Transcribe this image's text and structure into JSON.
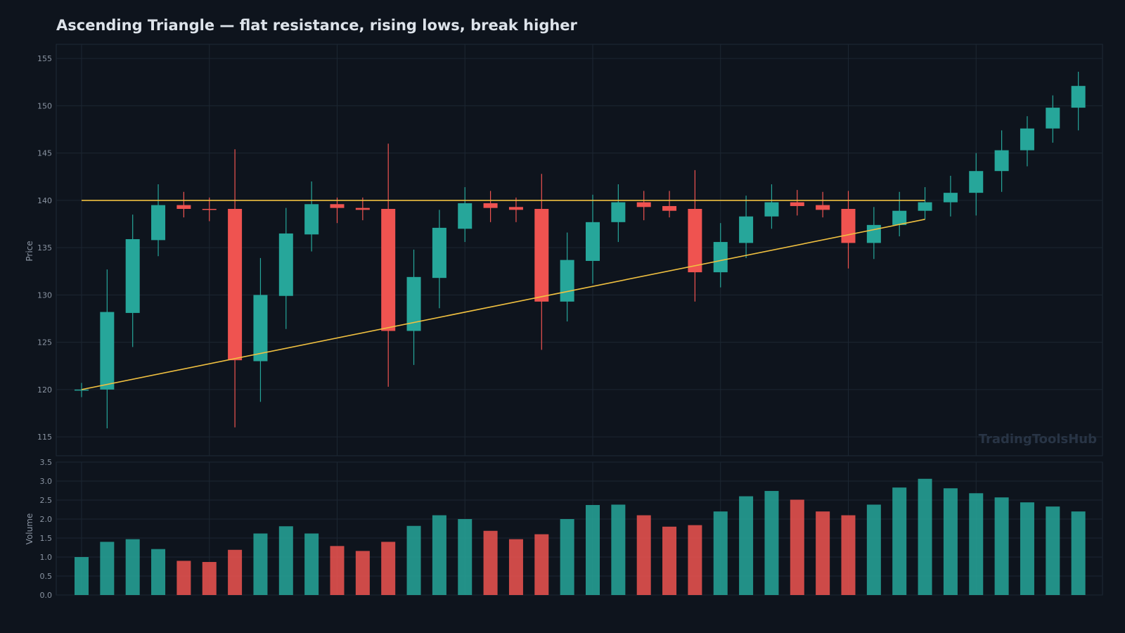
{
  "colors": {
    "background": "#0e141d",
    "up": "#26a69a",
    "down": "#ef5350",
    "trendline": "#f0c040",
    "grid": "#1c2632"
  },
  "chart_data": {
    "type": "candlestick",
    "title": "Ascending Triangle — flat resistance, rising lows, break higher",
    "watermark": "TradingToolsHub",
    "price_panel": {
      "ylabel": "Price",
      "ylim": [
        113.0,
        156.5
      ],
      "yticks": [
        "115",
        "120",
        "125",
        "130",
        "135",
        "140",
        "145",
        "150",
        "155"
      ],
      "grid": true
    },
    "volume_panel": {
      "ylabel": "Volume",
      "ylim": [
        0,
        3.5
      ],
      "yticks": [
        "0.0",
        "0.5",
        "1.0",
        "1.5",
        "2.0",
        "2.5",
        "3.0",
        "3.5"
      ],
      "grid": true
    },
    "candles": [
      {
        "o": 120.0,
        "h": 120.7,
        "l": 119.2,
        "c": 120.0,
        "v": 1.0
      },
      {
        "o": 120.0,
        "h": 132.7,
        "l": 115.9,
        "c": 128.2,
        "v": 1.4
      },
      {
        "o": 128.1,
        "h": 138.5,
        "l": 124.5,
        "c": 135.9,
        "v": 1.47
      },
      {
        "o": 135.8,
        "h": 141.7,
        "l": 134.1,
        "c": 139.5,
        "v": 1.21
      },
      {
        "o": 139.5,
        "h": 140.9,
        "l": 138.2,
        "c": 139.1,
        "v": 0.9
      },
      {
        "o": 139.1,
        "h": 140.3,
        "l": 137.8,
        "c": 139.0,
        "v": 0.87
      },
      {
        "o": 139.1,
        "h": 145.4,
        "l": 116.0,
        "c": 123.1,
        "v": 1.19
      },
      {
        "o": 123.0,
        "h": 133.9,
        "l": 118.7,
        "c": 130.0,
        "v": 1.62
      },
      {
        "o": 129.9,
        "h": 139.2,
        "l": 126.4,
        "c": 136.5,
        "v": 1.81
      },
      {
        "o": 136.4,
        "h": 142.0,
        "l": 134.6,
        "c": 139.6,
        "v": 1.62
      },
      {
        "o": 139.6,
        "h": 140.3,
        "l": 137.6,
        "c": 139.2,
        "v": 1.29
      },
      {
        "o": 139.2,
        "h": 140.3,
        "l": 137.9,
        "c": 139.0,
        "v": 1.16
      },
      {
        "o": 139.1,
        "h": 146.0,
        "l": 120.3,
        "c": 126.2,
        "v": 1.4
      },
      {
        "o": 126.2,
        "h": 134.8,
        "l": 122.6,
        "c": 131.9,
        "v": 1.82
      },
      {
        "o": 131.8,
        "h": 139.0,
        "l": 128.6,
        "c": 137.1,
        "v": 2.1
      },
      {
        "o": 137.0,
        "h": 141.4,
        "l": 135.6,
        "c": 139.7,
        "v": 2.0
      },
      {
        "o": 139.7,
        "h": 141.0,
        "l": 137.7,
        "c": 139.2,
        "v": 1.69
      },
      {
        "o": 139.3,
        "h": 140.3,
        "l": 137.7,
        "c": 139.0,
        "v": 1.47
      },
      {
        "o": 139.1,
        "h": 142.8,
        "l": 124.2,
        "c": 129.3,
        "v": 1.6
      },
      {
        "o": 129.3,
        "h": 136.6,
        "l": 127.2,
        "c": 133.7,
        "v": 2.0
      },
      {
        "o": 133.6,
        "h": 140.6,
        "l": 131.2,
        "c": 137.7,
        "v": 2.37
      },
      {
        "o": 137.7,
        "h": 141.7,
        "l": 135.6,
        "c": 139.8,
        "v": 2.38
      },
      {
        "o": 139.8,
        "h": 141.0,
        "l": 137.9,
        "c": 139.3,
        "v": 2.1
      },
      {
        "o": 139.4,
        "h": 141.0,
        "l": 138.2,
        "c": 138.9,
        "v": 1.8
      },
      {
        "o": 139.1,
        "h": 143.2,
        "l": 129.3,
        "c": 132.4,
        "v": 1.84
      },
      {
        "o": 132.4,
        "h": 137.6,
        "l": 130.8,
        "c": 135.6,
        "v": 2.2
      },
      {
        "o": 135.5,
        "h": 140.5,
        "l": 133.9,
        "c": 138.3,
        "v": 2.6
      },
      {
        "o": 138.3,
        "h": 141.7,
        "l": 137.0,
        "c": 139.8,
        "v": 2.74
      },
      {
        "o": 139.8,
        "h": 141.1,
        "l": 138.4,
        "c": 139.4,
        "v": 2.51
      },
      {
        "o": 139.5,
        "h": 140.9,
        "l": 138.2,
        "c": 139.0,
        "v": 2.2
      },
      {
        "o": 139.1,
        "h": 141.0,
        "l": 132.8,
        "c": 135.5,
        "v": 2.1
      },
      {
        "o": 135.5,
        "h": 139.3,
        "l": 133.8,
        "c": 137.4,
        "v": 2.38
      },
      {
        "o": 137.4,
        "h": 140.9,
        "l": 136.2,
        "c": 138.9,
        "v": 2.83
      },
      {
        "o": 138.9,
        "h": 141.4,
        "l": 138.0,
        "c": 139.8,
        "v": 3.06
      },
      {
        "o": 139.8,
        "h": 142.6,
        "l": 138.3,
        "c": 140.8,
        "v": 2.81
      },
      {
        "o": 140.8,
        "h": 145.0,
        "l": 138.4,
        "c": 143.1,
        "v": 2.68
      },
      {
        "o": 143.1,
        "h": 147.4,
        "l": 140.9,
        "c": 145.3,
        "v": 2.57
      },
      {
        "o": 145.3,
        "h": 148.9,
        "l": 143.6,
        "c": 147.6,
        "v": 2.44
      },
      {
        "o": 147.6,
        "h": 151.1,
        "l": 146.1,
        "c": 149.8,
        "v": 2.33
      },
      {
        "o": 149.8,
        "h": 153.6,
        "l": 147.4,
        "c": 152.1,
        "v": 2.2
      }
    ],
    "resistance": {
      "price": 140.0,
      "from_index": 0,
      "to_index": 33
    },
    "support": {
      "from_index": 0,
      "from_price": 120.0,
      "to_index": 33,
      "to_price": 138.0
    }
  }
}
